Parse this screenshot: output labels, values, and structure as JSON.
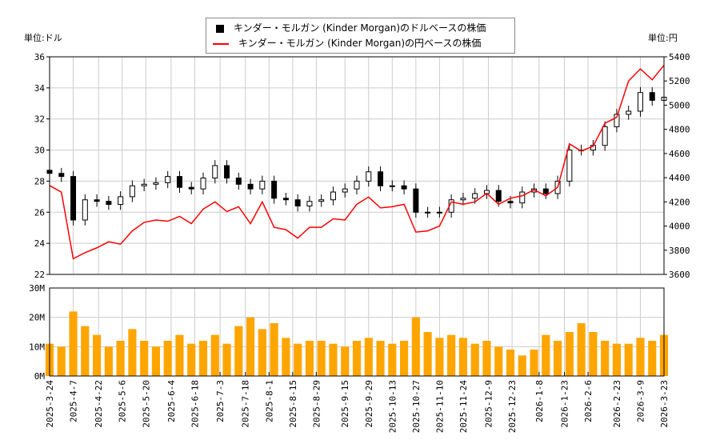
{
  "units": {
    "left": "単位:ドル",
    "right": "単位:円"
  },
  "legend": {
    "usd": "キンダー・モルガン (Kinder Morgan)のドルベースの株価",
    "jpy": "キンダー・モルガン (Kinder Morgan)の円ベースの株価"
  },
  "colors": {
    "usd": "#000000",
    "jpy": "#ff0000",
    "volume": "#ffa500",
    "grid": "#cccccc"
  },
  "chart_data": [
    {
      "type": "candlestick+line",
      "x_ticks": [
        "2025-3-24",
        "2025-4-7",
        "2025-4-22",
        "2025-5-6",
        "2025-5-20",
        "2025-6-4",
        "2025-6-18",
        "2025-7-3",
        "2025-7-18",
        "2025-8-1",
        "2025-8-15",
        "2025-8-29",
        "2025-9-15",
        "2025-9-29",
        "2025-10-13",
        "2025-10-27",
        "2025-11-10",
        "2025-11-24",
        "2025-12-9",
        "2025-12-23",
        "2026-1-8",
        "2026-1-23",
        "2026-2-6",
        "2026-2-23",
        "2026-3-9",
        "2026-3-23"
      ],
      "xlim": [
        "2025-3-24",
        "2026-3-23"
      ],
      "ylim_left": [
        22,
        36
      ],
      "yticks_left": [
        "22",
        "24",
        "26",
        "28",
        "30",
        "32",
        "34",
        "36"
      ],
      "ylim_right": [
        3600,
        5400
      ],
      "yticks_right": [
        "3600",
        "3800",
        "4000",
        "4200",
        "4400",
        "4600",
        "4800",
        "5000",
        "5200",
        "5400"
      ],
      "grid": true,
      "legend_placement": "top-center",
      "dates": [
        "2025-3-24",
        "2025-3-31",
        "2025-4-7",
        "2025-4-14",
        "2025-4-21",
        "2025-4-28",
        "2025-5-5",
        "2025-5-12",
        "2025-5-19",
        "2025-5-26",
        "2025-6-2",
        "2025-6-9",
        "2025-6-16",
        "2025-6-23",
        "2025-6-30",
        "2025-7-7",
        "2025-7-14",
        "2025-7-21",
        "2025-7-28",
        "2025-8-4",
        "2025-8-11",
        "2025-8-18",
        "2025-8-25",
        "2025-9-1",
        "2025-9-8",
        "2025-9-15",
        "2025-9-22",
        "2025-9-29",
        "2025-10-6",
        "2025-10-13",
        "2025-10-20",
        "2025-10-27",
        "2025-11-3",
        "2025-11-10",
        "2025-11-17",
        "2025-11-24",
        "2025-12-1",
        "2025-12-8",
        "2025-12-15",
        "2025-12-22",
        "2025-12-29",
        "2026-1-5",
        "2026-1-12",
        "2026-1-19",
        "2026-1-26",
        "2026-2-2",
        "2026-2-9",
        "2026-2-16",
        "2026-2-23",
        "2026-3-2",
        "2026-3-9",
        "2026-3-16",
        "2026-3-23"
      ],
      "usd_close": [
        28.5,
        28.3,
        25.5,
        26.8,
        26.7,
        26.5,
        27.0,
        27.7,
        27.8,
        27.9,
        28.3,
        27.6,
        27.5,
        28.2,
        29.0,
        28.2,
        27.8,
        27.5,
        28.0,
        26.9,
        26.8,
        26.4,
        26.7,
        26.8,
        27.3,
        27.5,
        28.0,
        28.6,
        27.7,
        27.7,
        27.5,
        26.0,
        26.0,
        26.0,
        26.8,
        26.9,
        27.2,
        27.4,
        26.7,
        26.6,
        27.3,
        27.5,
        27.2,
        28.0,
        30.0,
        30.0,
        30.3,
        31.5,
        32.3,
        32.5,
        33.7,
        33.2,
        33.4
      ],
      "jpy_close": [
        4335,
        4280,
        3730,
        3780,
        3820,
        3870,
        3850,
        3960,
        4030,
        4050,
        4040,
        4080,
        4020,
        4140,
        4200,
        4120,
        4160,
        4020,
        4200,
        3990,
        3970,
        3900,
        3990,
        3990,
        4060,
        4050,
        4180,
        4240,
        4150,
        4160,
        4180,
        3950,
        3960,
        4000,
        4200,
        4180,
        4200,
        4270,
        4180,
        4230,
        4250,
        4300,
        4250,
        4320,
        4680,
        4620,
        4660,
        4850,
        4900,
        5200,
        5300,
        5210,
        5330
      ]
    },
    {
      "type": "bar",
      "ylim": [
        0,
        30
      ],
      "yticks": [
        "0M",
        "10M",
        "20M",
        "30M"
      ],
      "unit": "M",
      "volume": [
        11,
        10,
        22,
        17,
        14,
        10,
        12,
        16,
        12,
        10,
        12,
        14,
        11,
        12,
        14,
        11,
        17,
        20,
        16,
        18,
        13,
        11,
        12,
        12,
        11,
        10,
        12,
        13,
        12,
        11,
        12,
        20,
        15,
        13,
        14,
        13,
        11,
        12,
        10,
        9,
        7,
        9,
        14,
        12,
        15,
        18,
        15,
        12,
        11,
        11,
        13,
        12,
        14
      ]
    }
  ]
}
